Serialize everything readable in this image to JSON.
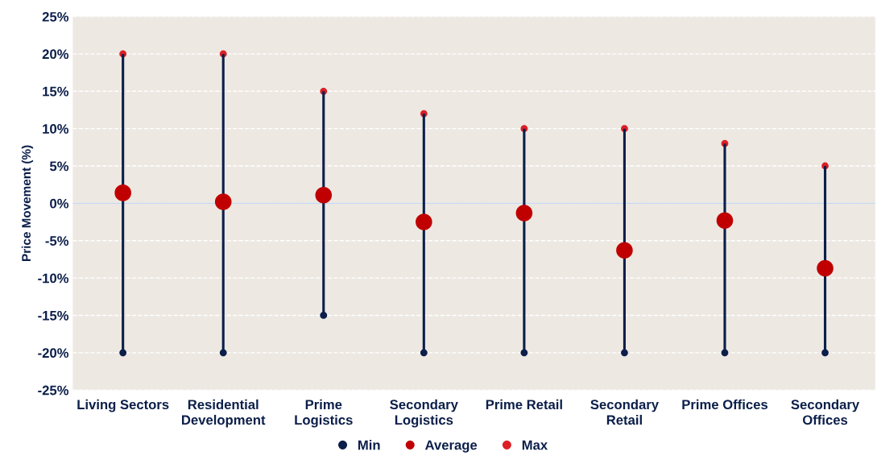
{
  "chart_data": {
    "type": "scatter",
    "ylabel": "Price Movement (%)",
    "categories": [
      "Living Sectors",
      "Residential Development",
      "Prime Logistics",
      "Secondary Logistics",
      "Prime Retail",
      "Secondary Retail",
      "Prime Offices",
      "Secondary Offices"
    ],
    "series": [
      {
        "type": "bar",
        "color": "#0c1f4a",
        "base": [
          -20,
          -20,
          -15,
          -20,
          -20,
          -20,
          -20,
          -20
        ],
        "values": [
          40,
          40,
          30,
          32,
          30,
          30,
          28,
          25
        ]
      },
      {
        "name": "Min",
        "color": "#0c1f4a",
        "values": [
          -20,
          -20,
          -15,
          -20,
          -20,
          -20,
          -20,
          -20
        ]
      },
      {
        "name": "Average",
        "color": "#c00000",
        "values": [
          1.4,
          0.2,
          1.1,
          -2.5,
          -1.3,
          -6.3,
          -2.3,
          -8.7
        ]
      },
      {
        "name": "Max",
        "color": "#dc1f26",
        "values": [
          20,
          20,
          15,
          12,
          10,
          10,
          8,
          5
        ]
      }
    ],
    "ylim": [
      -25,
      25
    ],
    "yticks": [
      {
        "value": -25,
        "label": "-25%"
      },
      {
        "value": -20,
        "label": "-20%"
      },
      {
        "value": -15,
        "label": "-15%"
      },
      {
        "value": -10,
        "label": "-10%"
      },
      {
        "value": -5,
        "label": "-5%"
      },
      {
        "value": 0,
        "label": "0%"
      },
      {
        "value": 5,
        "label": "5%"
      },
      {
        "value": 10,
        "label": "10%"
      },
      {
        "value": 15,
        "label": "15%"
      },
      {
        "value": 20,
        "label": "20%"
      },
      {
        "value": 25,
        "label": "25%"
      }
    ],
    "ref_lines": [
      {
        "axis": "y",
        "value": 0,
        "color": "#c6d9f1"
      }
    ],
    "grid": "y",
    "legend": "bottom",
    "marker": "circle"
  }
}
